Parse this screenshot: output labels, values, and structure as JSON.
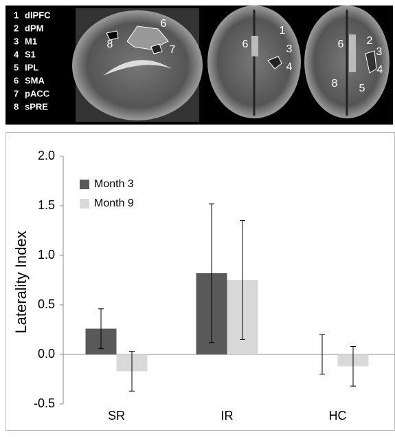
{
  "figure": {
    "region_legend": [
      {
        "number": "1",
        "label": "dlPFC"
      },
      {
        "number": "2",
        "label": "dPM"
      },
      {
        "number": "3",
        "label": "M1"
      },
      {
        "number": "4",
        "label": "S1"
      },
      {
        "number": "5",
        "label": "IPL"
      },
      {
        "number": "6",
        "label": "SMA"
      },
      {
        "number": "7",
        "label": "pACC"
      },
      {
        "number": "8",
        "label": "sPRE"
      }
    ],
    "image_labels": [
      [
        "6",
        "8",
        "7"
      ],
      [
        "6",
        "1",
        "3",
        "4"
      ],
      [
        "6",
        "2",
        "3",
        "4",
        "8",
        "5"
      ]
    ]
  },
  "chart_data": {
    "type": "bar",
    "y_label": "Laterality Index",
    "categories": [
      "SR",
      "IR",
      "HC"
    ],
    "series": [
      {
        "name": "Month 3",
        "color": "#595959",
        "values": [
          0.26,
          0.82,
          0.0
        ],
        "errors": [
          0.2,
          0.7,
          0.2
        ]
      },
      {
        "name": "Month 9",
        "color": "#d9d9d9",
        "values": [
          -0.17,
          0.75,
          -0.12
        ],
        "errors": [
          0.2,
          0.6,
          0.2
        ]
      }
    ],
    "ylim": [
      -0.5,
      2.0
    ],
    "yticks": [
      -0.5,
      {
        "value": 0,
        "label": "0.0"
      },
      0.5,
      {
        "value": 1,
        "label": "1.0"
      },
      1.5,
      {
        "value": 2,
        "label": "2.0"
      }
    ],
    "legend": "upper left"
  }
}
